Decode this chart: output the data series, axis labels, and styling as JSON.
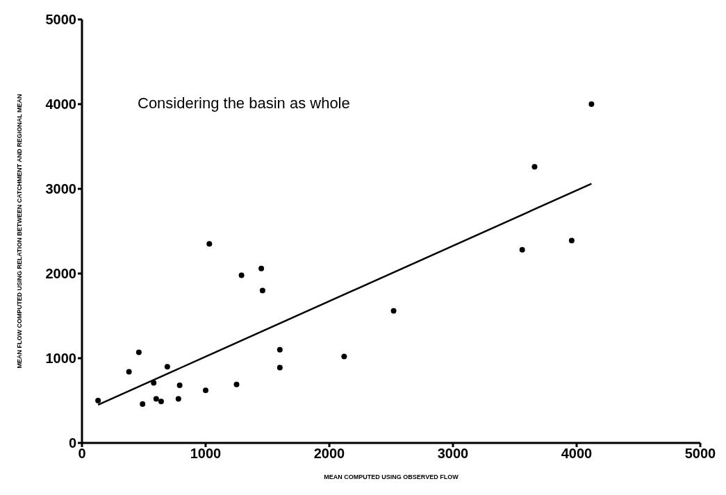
{
  "chart_data": {
    "type": "scatter",
    "annotations": [
      "Considering the basin as whole"
    ],
    "xlabel": "MEAN COMPUTED USING OBSERVED FLOW",
    "ylabel": "MEAN FLOW COMPUTED USING RELATION BETWEEN CATCHMENT AND REGIONAL MEAN",
    "xlim": [
      0,
      5000
    ],
    "ylim": [
      0,
      5000
    ],
    "xticks": [
      0,
      1000,
      2000,
      3000,
      4000,
      5000
    ],
    "yticks": [
      0,
      1000,
      2000,
      3000,
      4000,
      5000
    ],
    "grid": false,
    "marker": "circle",
    "series": [
      {
        "color": "#000000",
        "x": [
          130,
          380,
          460,
          490,
          580,
          600,
          640,
          690,
          780,
          790,
          1000,
          1030,
          1250,
          1290,
          1450,
          1460,
          1600,
          1600,
          2120,
          2520,
          3560,
          3660,
          3960,
          4120
        ],
        "values": [
          500,
          840,
          1070,
          460,
          710,
          520,
          490,
          900,
          520,
          680,
          620,
          2350,
          690,
          1980,
          2060,
          1800,
          1100,
          890,
          1020,
          1560,
          2280,
          3260,
          2390,
          4000
        ]
      },
      {
        "type": "line",
        "color": "#000000",
        "marker": "none",
        "line_style": "solid",
        "x": [
          130,
          4120
        ],
        "values": [
          450,
          3060
        ]
      }
    ]
  }
}
